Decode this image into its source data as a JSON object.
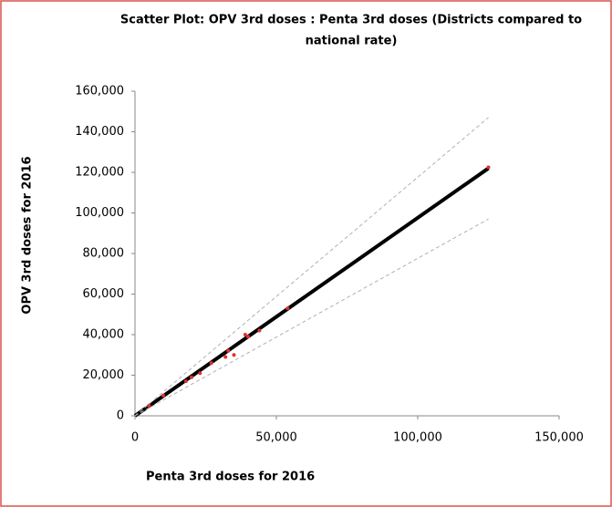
{
  "chart_data": {
    "type": "scatter",
    "title": [
      "Scatter Plot: OPV 3rd doses : Penta 3rd doses (Districts compared to",
      "national rate)"
    ],
    "xlabel": "Penta 3rd doses for 2016",
    "ylabel": "OPV 3rd doses for 2016",
    "xlim": [
      0,
      150000
    ],
    "ylim": [
      0,
      160000
    ],
    "xticks": [
      0,
      {
        "value": 50000,
        "label": "50,000"
      },
      {
        "value": 100000,
        "label": "100,000"
      },
      {
        "value": 150000,
        "label": "150,000"
      }
    ],
    "yticks": [
      0,
      {
        "value": 20000,
        "label": "20,000"
      },
      {
        "value": 40000,
        "label": "40,000"
      },
      {
        "value": 60000,
        "label": "60,000"
      },
      {
        "value": 80000,
        "label": "80,000"
      },
      {
        "value": 100000,
        "label": "100,000"
      },
      {
        "value": 120000,
        "label": "120,000"
      },
      {
        "value": 140000,
        "label": "140,000"
      },
      {
        "value": 160000,
        "label": "160,000"
      }
    ],
    "series": [
      {
        "color": "#e03030",
        "x": [
          5000,
          10000,
          18000,
          20000,
          23000,
          27000,
          32000,
          33000,
          35000,
          39000,
          40000,
          44000,
          54000,
          125000
        ],
        "values": [
          5000,
          10000,
          17000,
          19000,
          21000,
          26000,
          29000,
          32000,
          30000,
          40000,
          39000,
          42000,
          53000,
          122500
        ]
      }
    ],
    "lines": [
      {
        "x": [
          0,
          125000
        ],
        "y": [
          0,
          122000
        ],
        "color": "#000000",
        "dashed": false
      },
      {
        "x": [
          0,
          125000
        ],
        "y": [
          0,
          147000
        ],
        "color": "#b0b0b0",
        "dashed": true
      },
      {
        "x": [
          0,
          125000
        ],
        "y": [
          0,
          97000
        ],
        "color": "#b0b0b0",
        "dashed": true
      }
    ]
  }
}
